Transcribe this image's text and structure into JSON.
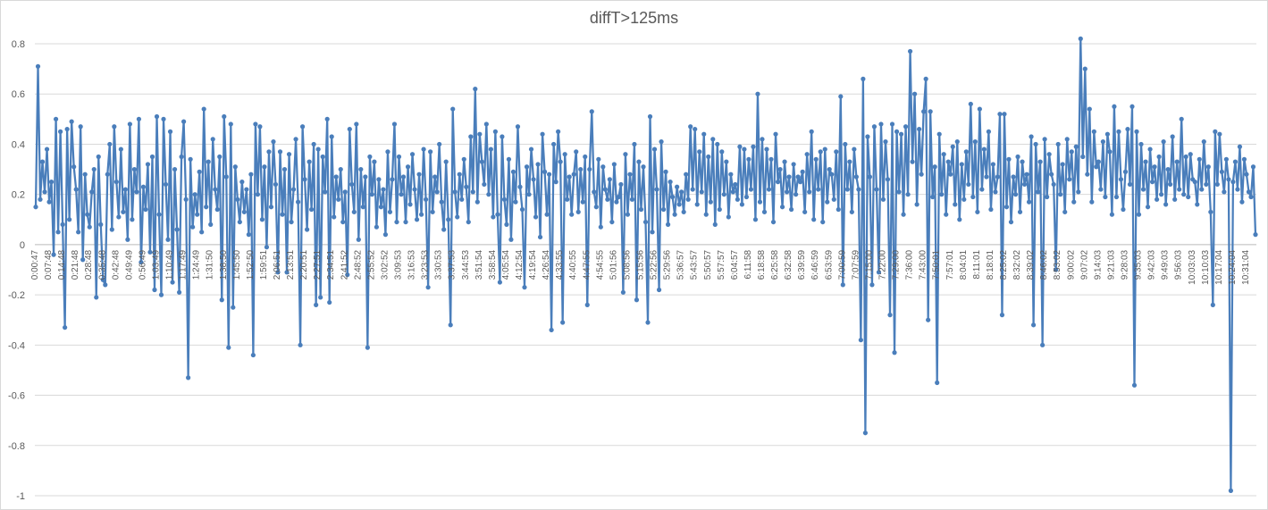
{
  "chart_data": {
    "type": "line",
    "title": "diffT>125ms",
    "xlabel": "",
    "ylabel": "",
    "ylim": [
      -1,
      0.8
    ],
    "yticks": [
      0.8,
      0.6,
      0.4,
      0.2,
      0,
      -0.2,
      -0.4,
      -0.6,
      -0.8,
      -1
    ],
    "ytick_labels": [
      "0.8",
      "0.6",
      "0.4",
      "0.2",
      "0",
      "-0.2",
      "-0.4",
      "-0.6",
      "-0.8",
      "-1"
    ],
    "grid": "horizontal",
    "legend": "none",
    "series_color": "#4a7ebb",
    "x_tick_labels": [
      "0:00:47",
      "0:07:48",
      "0:14:48",
      "0:21:48",
      "0:28:48",
      "0:35:48",
      "0:42:48",
      "0:49:49",
      "0:56:49",
      "1:03:49",
      "1:10:49",
      "1:17:49",
      "1:24:49",
      "1:31:50",
      "1:38:50",
      "1:45:50",
      "1:52:50",
      "1:59:51",
      "2:06:51",
      "2:13:51",
      "2:20:51",
      "2:27:51",
      "2:34:51",
      "2:41:52",
      "2:48:52",
      "2:55:52",
      "3:02:52",
      "3:09:53",
      "3:16:53",
      "3:23:53",
      "3:30:53",
      "3:37:53",
      "3:44:53",
      "3:51:54",
      "3:58:54",
      "4:05:54",
      "4:12:54",
      "4:19:54",
      "4:26:54",
      "4:33:55",
      "4:40:55",
      "4:47:55",
      "4:54:55",
      "5:01:56",
      "5:08:56",
      "5:15:56",
      "5:22:56",
      "5:29:56",
      "5:36:57",
      "5:43:57",
      "5:50:57",
      "5:57:57",
      "6:04:57",
      "6:11:58",
      "6:18:58",
      "6:25:58",
      "6:32:58",
      "6:39:59",
      "6:46:59",
      "6:53:59",
      "7:00:59",
      "7:07:59",
      "7:15:00",
      "7:22:00",
      "7:29:00",
      "7:36:00",
      "7:43:00",
      "7:50:01",
      "7:57:01",
      "8:04:01",
      "8:11:01",
      "8:18:01",
      "8:25:02",
      "8:32:02",
      "8:39:02",
      "8:46:02",
      "8:53:02",
      "9:00:02",
      "9:07:02",
      "9:14:03",
      "9:21:03",
      "9:28:03",
      "9:35:03",
      "9:42:03",
      "9:49:03",
      "9:56:03",
      "10:03:03",
      "10:10:03",
      "10:17:04",
      "10:24:04",
      "10:31:04"
    ],
    "series": [
      {
        "values": [
          0.15,
          0.71,
          0.18,
          0.33,
          0.21,
          0.38,
          0.17,
          0.25,
          -0.04,
          0.5,
          0.05,
          0.45,
          0.08,
          -0.33,
          0.46,
          0.1,
          0.49,
          0.31,
          0.22,
          0.05,
          0.47,
          -0.06,
          0.28,
          0.12,
          0.07,
          0.21,
          0.3,
          -0.21,
          0.35,
          0.08,
          -0.14,
          -0.16,
          0.28,
          0.4,
          0.06,
          0.47,
          0.25,
          0.11,
          0.38,
          0.13,
          0.22,
          0.02,
          0.48,
          0.1,
          0.3,
          0.21,
          0.5,
          -0.07,
          0.23,
          0.14,
          0.32,
          -0.03,
          0.35,
          -0.18,
          0.51,
          0.12,
          -0.2,
          0.5,
          0.24,
          0.02,
          0.45,
          -0.15,
          0.3,
          0.06,
          -0.19,
          0.35,
          0.49,
          0.18,
          -0.53,
          0.34,
          0.07,
          0.2,
          0.12,
          0.29,
          0.05,
          0.54,
          0.15,
          0.33,
          0.08,
          0.42,
          0.22,
          0.14,
          0.35,
          -0.22,
          0.51,
          0.27,
          -0.41,
          0.48,
          -0.25,
          0.31,
          0.18,
          0.09,
          0.25,
          0.13,
          0.22,
          0.04,
          0.28,
          -0.44,
          0.48,
          0.2,
          0.47,
          0.1,
          0.31,
          -0.01,
          0.37,
          0.15,
          0.41,
          0.24,
          -0.11,
          0.37,
          0.12,
          0.3,
          -0.11,
          0.36,
          0.09,
          0.22,
          0.42,
          0.17,
          -0.4,
          0.47,
          0.26,
          0.06,
          0.33,
          0.14,
          0.4,
          -0.24,
          0.38,
          -0.21,
          0.35,
          0.21,
          0.5,
          -0.23,
          0.43,
          0.11,
          0.27,
          0.18,
          0.3,
          0.09,
          0.21,
          -0.12,
          0.46,
          0.24,
          0.13,
          0.48,
          0.02,
          0.3,
          0.15,
          0.27,
          -0.41,
          0.35,
          0.2,
          0.33,
          0.07,
          0.26,
          0.15,
          0.22,
          0.04,
          0.37,
          0.13,
          0.26,
          0.48,
          0.09,
          0.35,
          0.2,
          0.27,
          0.09,
          0.31,
          0.16,
          0.36,
          0.22,
          0.1,
          0.28,
          0.12,
          0.38,
          0.18,
          -0.17,
          0.37,
          0.13,
          0.27,
          0.21,
          0.4,
          0.17,
          0.06,
          0.33,
          0.1,
          -0.32,
          0.54,
          0.21,
          0.11,
          0.28,
          0.18,
          0.34,
          0.23,
          0.09,
          0.43,
          0.21,
          0.62,
          0.17,
          0.44,
          0.33,
          0.24,
          0.48,
          0.2,
          0.38,
          0.11,
          0.45,
          0.12,
          -0.15,
          0.43,
          0.18,
          0.08,
          0.34,
          0.02,
          0.29,
          0.17,
          0.47,
          0.23,
          0.14,
          -0.17,
          0.31,
          0.2,
          0.38,
          0.26,
          0.11,
          0.32,
          0.03,
          0.44,
          0.29,
          0.12,
          0.28,
          -0.34,
          0.4,
          0.25,
          0.45,
          0.33,
          -0.31,
          0.36,
          0.18,
          0.27,
          0.12,
          0.28,
          0.37,
          0.13,
          0.3,
          0.17,
          0.35,
          -0.24,
          0.3,
          0.53,
          0.21,
          0.15,
          0.34,
          0.07,
          0.31,
          0.22,
          0.18,
          0.26,
          0.09,
          0.32,
          0.17,
          0.19,
          0.24,
          -0.19,
          0.36,
          0.12,
          0.28,
          0.18,
          0.4,
          -0.22,
          0.33,
          0.14,
          0.31,
          0.09,
          -0.31,
          0.51,
          0.05,
          0.38,
          0.22,
          -0.18,
          0.41,
          0.14,
          0.29,
          0.08,
          0.25,
          0.19,
          0.12,
          0.23,
          0.16,
          0.21,
          0.13,
          0.28,
          0.18,
          0.47,
          0.22,
          0.46,
          0.16,
          0.37,
          0.21,
          0.44,
          0.12,
          0.35,
          0.17,
          0.42,
          0.08,
          0.4,
          0.14,
          0.37,
          0.2,
          0.33,
          0.11,
          0.28,
          0.21,
          0.24,
          0.18,
          0.39,
          0.16,
          0.38,
          0.19,
          0.34,
          0.22,
          0.39,
          0.1,
          0.6,
          0.17,
          0.42,
          0.13,
          0.38,
          0.22,
          0.34,
          0.09,
          0.44,
          0.25,
          0.3,
          0.15,
          0.33,
          0.21,
          0.27,
          0.14,
          0.32,
          0.2,
          0.27,
          0.25,
          0.29,
          0.13,
          0.36,
          0.21,
          0.45,
          0.1,
          0.34,
          0.22,
          0.37,
          0.09,
          0.38,
          0.17,
          0.3,
          0.28,
          0.18,
          0.37,
          0.14,
          0.59,
          -0.16,
          0.4,
          0.22,
          0.33,
          0.13,
          0.38,
          0.27,
          0.22,
          -0.38,
          0.66,
          -0.75,
          0.43,
          0.27,
          -0.16,
          0.47,
          0.22,
          -0.11,
          0.48,
          0.18,
          0.41,
          0.26,
          -0.28,
          0.48,
          -0.43,
          0.45,
          0.21,
          0.44,
          0.12,
          0.47,
          0.2,
          0.77,
          0.33,
          0.6,
          0.16,
          0.46,
          0.28,
          0.53,
          0.66,
          -0.3,
          0.53,
          0.19,
          0.31,
          -0.55,
          0.44,
          0.2,
          0.36,
          0.12,
          0.33,
          0.28,
          0.39,
          0.16,
          0.41,
          0.1,
          0.32,
          0.18,
          0.37,
          0.24,
          0.56,
          0.19,
          0.41,
          0.13,
          0.54,
          0.22,
          0.38,
          0.27,
          0.45,
          0.14,
          0.32,
          0.21,
          0.27,
          0.52,
          -0.28,
          0.52,
          0.15,
          0.34,
          0.09,
          0.27,
          0.2,
          0.35,
          0.13,
          0.33,
          0.24,
          0.28,
          0.17,
          0.43,
          -0.32,
          0.4,
          0.21,
          0.33,
          -0.4,
          0.42,
          0.19,
          0.36,
          0.28,
          0.24,
          -0.1,
          0.4,
          0.2,
          0.32,
          0.13,
          0.42,
          0.26,
          0.37,
          0.17,
          0.39,
          0.21,
          0.82,
          0.35,
          0.7,
          0.28,
          0.54,
          0.17,
          0.45,
          0.31,
          0.33,
          0.22,
          0.41,
          0.19,
          0.44,
          0.37,
          0.12,
          0.55,
          0.19,
          0.45,
          0.26,
          0.14,
          0.29,
          0.46,
          0.24,
          0.55,
          -0.56,
          0.45,
          0.12,
          0.4,
          0.22,
          0.33,
          0.15,
          0.38,
          0.25,
          0.31,
          0.18,
          0.35,
          0.2,
          0.41,
          0.16,
          0.3,
          0.24,
          0.43,
          0.18,
          0.33,
          0.22,
          0.5,
          0.2,
          0.35,
          0.19,
          0.36,
          0.26,
          0.25,
          0.16,
          0.34,
          0.22,
          0.41,
          0.24,
          0.31,
          0.13,
          -0.24,
          0.45,
          0.24,
          0.44,
          0.29,
          0.21,
          0.34,
          0.26,
          -0.98,
          0.25,
          0.33,
          0.22,
          0.39,
          0.17,
          0.34,
          0.28,
          0.21,
          0.19,
          0.31,
          0.04
        ]
      }
    ]
  }
}
